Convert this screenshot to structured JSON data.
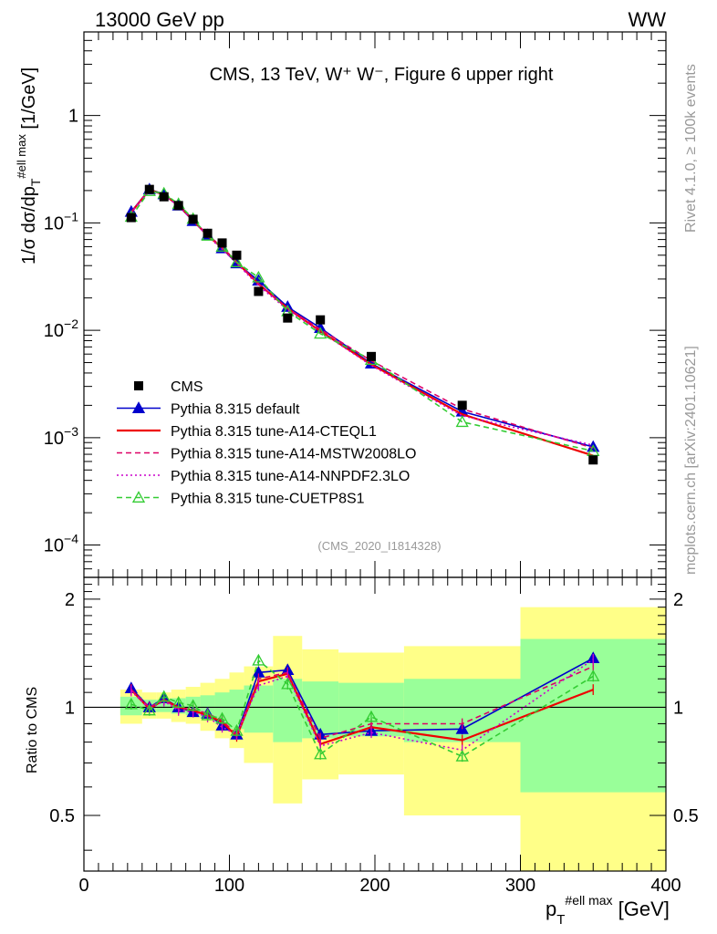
{
  "header": {
    "energy": "13000 GeV pp",
    "process": "WW"
  },
  "side": {
    "rivet": "Rivet 4.1.0, ≥ 100k events",
    "mcplots": "mcplots.cern.ch [arXiv:2401.10621]"
  },
  "chart_data": {
    "type": "line",
    "title": "CMS, 13 TeV, W⁺ W⁻, Figure 6 upper right",
    "analysis": "(CMS_2020_I1814328)",
    "ylabel_main": "1/σ dσ/dp_T^{#ell max} [1/GeV]",
    "ylabel_ratio": "Ratio to CMS",
    "xlabel": "p_T^{#ell max} [GeV]",
    "xlim": [
      0,
      400
    ],
    "ylim_main": [
      5e-05,
      6
    ],
    "ylim_ratio": [
      0.35,
      2.3
    ],
    "xticks": [
      0,
      100,
      200,
      300,
      400
    ],
    "ratio_ticks": [
      0.5,
      1,
      2
    ],
    "main_ticks": [
      {
        "value": 0.0001,
        "base": "10",
        "exp": "−4"
      },
      {
        "value": 0.001,
        "base": "10",
        "exp": "−3"
      },
      {
        "value": 0.01,
        "base": "10",
        "exp": "−2"
      },
      {
        "value": 0.1,
        "base": "10",
        "exp": "−1"
      },
      {
        "value": 1,
        "base": "1",
        "exp": ""
      }
    ],
    "x": [
      32.5,
      45,
      55,
      65,
      75,
      85,
      95,
      105,
      120,
      140,
      162.5,
      197.5,
      260,
      350
    ],
    "bin_edges": [
      25,
      40,
      50,
      60,
      70,
      80,
      90,
      100,
      110,
      130,
      150,
      175,
      220,
      300,
      400
    ],
    "data_series": {
      "name": "CMS",
      "values": [
        0.112,
        0.205,
        0.175,
        0.145,
        0.108,
        0.08,
        0.065,
        0.05,
        0.023,
        0.013,
        0.0125,
        0.0057,
        0.002,
        0.00062
      ],
      "band_inner": [
        [
          0.95,
          1.07
        ],
        [
          0.97,
          1.05
        ],
        [
          0.97,
          1.05
        ],
        [
          0.96,
          1.06
        ],
        [
          0.95,
          1.07
        ],
        [
          0.93,
          1.08
        ],
        [
          0.9,
          1.1
        ],
        [
          0.87,
          1.12
        ],
        [
          0.85,
          1.15
        ],
        [
          0.8,
          1.2
        ],
        [
          0.82,
          1.18
        ],
        [
          0.83,
          1.17
        ],
        [
          0.8,
          1.2
        ],
        [
          0.58,
          1.55
        ]
      ],
      "band_outer": [
        [
          0.9,
          1.12
        ],
        [
          0.93,
          1.1
        ],
        [
          0.93,
          1.1
        ],
        [
          0.91,
          1.12
        ],
        [
          0.9,
          1.14
        ],
        [
          0.86,
          1.17
        ],
        [
          0.82,
          1.2
        ],
        [
          0.77,
          1.25
        ],
        [
          0.7,
          1.3
        ],
        [
          0.54,
          1.58
        ],
        [
          0.63,
          1.45
        ],
        [
          0.65,
          1.42
        ],
        [
          0.5,
          1.48
        ],
        [
          0.35,
          1.9
        ]
      ]
    },
    "series": [
      {
        "name": "Pythia 8.315 default",
        "color": "#0000cc",
        "dash": "",
        "marker": "triangle-filled",
        "values": [
          0.127,
          0.205,
          0.185,
          0.145,
          0.104,
          0.077,
          0.058,
          0.042,
          0.029,
          0.0165,
          0.0105,
          0.0049,
          0.00175,
          0.00082
        ],
        "ratio": [
          1.13,
          1.0,
          1.06,
          1.0,
          0.97,
          0.96,
          0.89,
          0.84,
          1.25,
          1.27,
          0.84,
          0.86,
          0.87,
          1.37
        ]
      },
      {
        "name": "Pythia 8.315 tune-A14-CTEQL1",
        "color": "#ee0000",
        "dash": "",
        "marker": "none",
        "values": [
          0.125,
          0.203,
          0.183,
          0.146,
          0.106,
          0.076,
          0.059,
          0.043,
          0.027,
          0.016,
          0.0098,
          0.0048,
          0.00165,
          0.00068
        ],
        "ratio": [
          1.12,
          0.99,
          1.05,
          1.0,
          0.98,
          0.95,
          0.91,
          0.83,
          1.18,
          1.24,
          0.79,
          0.88,
          0.81,
          1.12
        ]
      },
      {
        "name": "Pythia 8.315 tune-A14-MSTW2008LO",
        "color": "#dd0066",
        "dash": "6,4",
        "marker": "none",
        "values": [
          0.125,
          0.204,
          0.183,
          0.144,
          0.107,
          0.077,
          0.06,
          0.043,
          0.027,
          0.016,
          0.0102,
          0.0052,
          0.00185,
          0.0008
        ],
        "ratio": [
          1.12,
          1.0,
          1.05,
          0.99,
          0.99,
          0.96,
          0.92,
          0.84,
          1.2,
          1.25,
          0.82,
          0.9,
          0.9,
          1.3
        ]
      },
      {
        "name": "Pythia 8.315 tune-A14-NNPDF2.3LO",
        "color": "#cc00cc",
        "dash": "2,3",
        "marker": "none",
        "values": [
          0.124,
          0.202,
          0.182,
          0.143,
          0.105,
          0.075,
          0.057,
          0.042,
          0.026,
          0.0155,
          0.0097,
          0.0047,
          0.0016,
          0.00085
        ],
        "ratio": [
          1.11,
          0.99,
          1.04,
          0.98,
          0.97,
          0.94,
          0.88,
          0.84,
          1.15,
          1.22,
          0.78,
          0.85,
          0.76,
          1.36
        ]
      },
      {
        "name": "Pythia 8.315 tune-CUETP8S1",
        "color": "#33cc33",
        "dash": "6,4",
        "marker": "triangle-open",
        "values": [
          0.114,
          0.198,
          0.188,
          0.15,
          0.109,
          0.076,
          0.06,
          0.043,
          0.031,
          0.015,
          0.0093,
          0.0053,
          0.0014,
          0.00075
        ],
        "ratio": [
          1.02,
          0.98,
          1.07,
          1.03,
          1.01,
          0.95,
          0.93,
          0.86,
          1.35,
          1.16,
          0.74,
          0.94,
          0.73,
          1.22
        ]
      }
    ]
  }
}
